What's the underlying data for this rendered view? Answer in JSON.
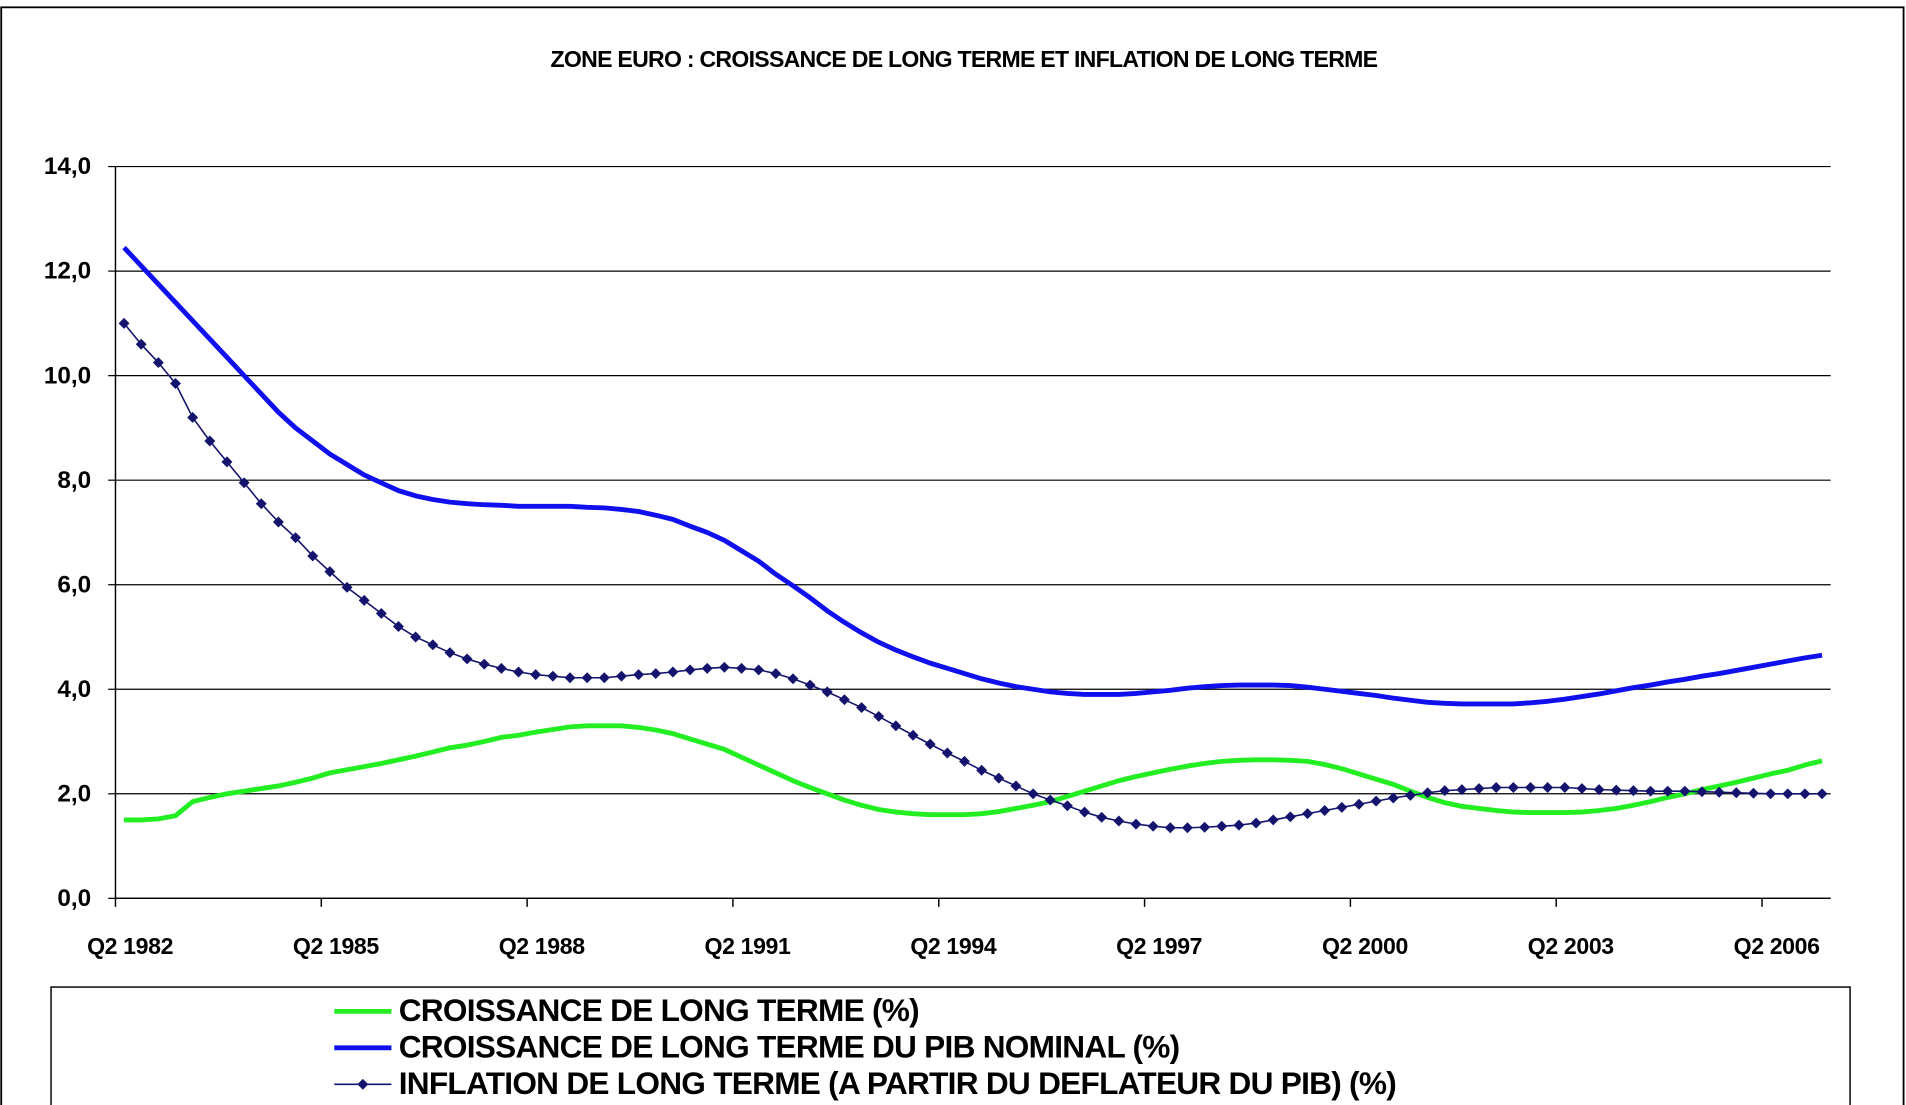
{
  "chart_data": {
    "type": "line",
    "title": "ZONE EURO : CROISSANCE DE LONG TERME ET INFLATION DE LONG TERME",
    "categories": [
      "Q2 1982",
      null,
      null,
      null,
      null,
      null,
      null,
      null,
      null,
      null,
      null,
      null,
      "Q2 1985",
      null,
      null,
      null,
      null,
      null,
      null,
      null,
      null,
      null,
      null,
      null,
      "Q2 1988",
      null,
      null,
      null,
      null,
      null,
      null,
      null,
      null,
      null,
      null,
      null,
      "Q2 1991",
      null,
      null,
      null,
      null,
      null,
      null,
      null,
      null,
      null,
      null,
      null,
      "Q2 1994",
      null,
      null,
      null,
      null,
      null,
      null,
      null,
      null,
      null,
      null,
      null,
      "Q2 1997",
      null,
      null,
      null,
      null,
      null,
      null,
      null,
      null,
      null,
      null,
      null,
      "Q2 2000",
      null,
      null,
      null,
      null,
      null,
      null,
      null,
      null,
      null,
      null,
      null,
      "Q2 2003",
      null,
      null,
      null,
      null,
      null,
      null,
      null,
      null,
      null,
      null,
      null,
      "Q2 2006",
      null,
      null,
      null
    ],
    "series": [
      {
        "name": "CROISSANCE DE LONG TERME (%)",
        "color": "#22ee22",
        "marker": "none",
        "values": [
          1.5,
          1.5,
          1.52,
          1.58,
          1.85,
          1.93,
          2.0,
          2.05,
          2.1,
          2.15,
          2.22,
          2.3,
          2.4,
          2.46,
          2.52,
          2.58,
          2.65,
          2.72,
          2.8,
          2.88,
          2.93,
          3.0,
          3.08,
          3.12,
          3.18,
          3.23,
          3.28,
          3.3,
          3.3,
          3.3,
          3.27,
          3.22,
          3.15,
          3.05,
          2.95,
          2.85,
          2.7,
          2.55,
          2.4,
          2.25,
          2.12,
          2.0,
          1.88,
          1.78,
          1.7,
          1.65,
          1.62,
          1.6,
          1.6,
          1.6,
          1.62,
          1.66,
          1.72,
          1.78,
          1.85,
          1.95,
          2.05,
          2.15,
          2.25,
          2.33,
          2.4,
          2.47,
          2.53,
          2.58,
          2.62,
          2.64,
          2.65,
          2.65,
          2.64,
          2.62,
          2.56,
          2.48,
          2.38,
          2.28,
          2.18,
          2.05,
          1.93,
          1.83,
          1.76,
          1.72,
          1.68,
          1.65,
          1.64,
          1.64,
          1.64,
          1.65,
          1.68,
          1.72,
          1.78,
          1.85,
          1.93,
          2.0,
          2.08,
          2.15,
          2.22,
          2.3,
          2.38,
          2.45,
          2.55,
          2.63
        ]
      },
      {
        "name": "CROISSANCE DE LONG TERME DU PIB NOMINAL (%)",
        "color": "#1010ee",
        "marker": "none",
        "values": [
          12.45,
          12.1,
          11.75,
          11.4,
          11.05,
          10.7,
          10.35,
          10.0,
          9.65,
          9.3,
          9.0,
          8.75,
          8.5,
          8.3,
          8.1,
          7.95,
          7.8,
          7.7,
          7.63,
          7.58,
          7.55,
          7.53,
          7.52,
          7.5,
          7.5,
          7.5,
          7.5,
          7.48,
          7.47,
          7.44,
          7.4,
          7.33,
          7.25,
          7.12,
          7.0,
          6.85,
          6.65,
          6.45,
          6.2,
          5.98,
          5.75,
          5.5,
          5.28,
          5.08,
          4.9,
          4.75,
          4.62,
          4.5,
          4.4,
          4.3,
          4.2,
          4.12,
          4.05,
          4.0,
          3.95,
          3.92,
          3.9,
          3.9,
          3.9,
          3.92,
          3.95,
          3.98,
          4.02,
          4.05,
          4.07,
          4.08,
          4.08,
          4.08,
          4.07,
          4.04,
          4.0,
          3.96,
          3.92,
          3.88,
          3.83,
          3.79,
          3.75,
          3.73,
          3.72,
          3.72,
          3.72,
          3.72,
          3.74,
          3.77,
          3.81,
          3.86,
          3.91,
          3.97,
          4.03,
          4.08,
          4.14,
          4.19,
          4.25,
          4.3,
          4.36,
          4.42,
          4.48,
          4.54,
          4.6,
          4.65
        ]
      },
      {
        "name": "INFLATION DE LONG TERME (A PARTIR DU DEFLATEUR DU PIB) (%)",
        "color": "#14146e",
        "marker": "diamond",
        "values": [
          11.0,
          10.6,
          10.25,
          9.85,
          9.2,
          8.75,
          8.35,
          7.95,
          7.55,
          7.2,
          6.9,
          6.55,
          6.25,
          5.95,
          5.7,
          5.45,
          5.2,
          5.0,
          4.85,
          4.7,
          4.58,
          4.48,
          4.4,
          4.33,
          4.28,
          4.25,
          4.22,
          4.22,
          4.22,
          4.25,
          4.28,
          4.3,
          4.33,
          4.37,
          4.4,
          4.42,
          4.4,
          4.37,
          4.3,
          4.2,
          4.08,
          3.95,
          3.8,
          3.65,
          3.48,
          3.3,
          3.12,
          2.95,
          2.78,
          2.62,
          2.45,
          2.3,
          2.15,
          2.0,
          1.88,
          1.77,
          1.65,
          1.55,
          1.48,
          1.42,
          1.38,
          1.35,
          1.35,
          1.36,
          1.38,
          1.4,
          1.44,
          1.5,
          1.56,
          1.62,
          1.68,
          1.74,
          1.8,
          1.86,
          1.92,
          1.97,
          2.02,
          2.06,
          2.08,
          2.1,
          2.12,
          2.12,
          2.12,
          2.12,
          2.12,
          2.1,
          2.08,
          2.07,
          2.06,
          2.05,
          2.05,
          2.05,
          2.04,
          2.03,
          2.02,
          2.01,
          2.0,
          2.0,
          2.0,
          2.0
        ]
      }
    ],
    "ylim": [
      0,
      14
    ],
    "yticks": [
      {
        "value": 0,
        "label": "0,0"
      },
      {
        "value": 2,
        "label": "2,0"
      },
      {
        "value": 4,
        "label": "4,0"
      },
      {
        "value": 6,
        "label": "6,0"
      },
      {
        "value": 8,
        "label": "8,0"
      },
      {
        "value": 10,
        "label": "10,0"
      },
      {
        "value": 12,
        "label": "12,0"
      },
      {
        "value": 14,
        "label": "14,0"
      }
    ],
    "grid": true,
    "legend": "bottom"
  }
}
